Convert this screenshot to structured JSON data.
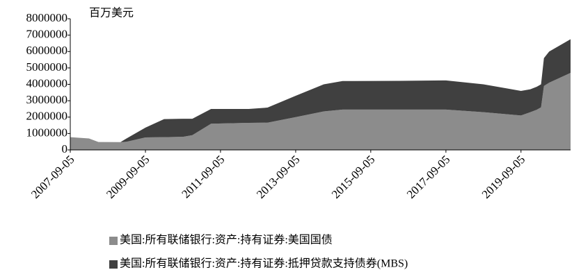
{
  "chart_data": {
    "type": "stacked_area",
    "y_label": "百万美元",
    "x": [
      "2007-09-05",
      "2008-03-05",
      "2008-06-05",
      "2009-01-05",
      "2009-03-05",
      "2009-09-05",
      "2010-03-05",
      "2010-09-05",
      "2010-12-05",
      "2011-06-05",
      "2012-06-05",
      "2012-12-05",
      "2013-09-05",
      "2014-06-05",
      "2014-12-05",
      "2016-06-05",
      "2017-09-05",
      "2018-09-05",
      "2019-09-05",
      "2019-12-05",
      "2020-02-05",
      "2020-03-18",
      "2020-04-15",
      "2020-06-05",
      "2020-12-30"
    ],
    "series": [
      {
        "name": "美国:所有联储银行:资产:持有证券:美国国债",
        "color": "#8c8c8c",
        "values": [
          780000,
          700000,
          480000,
          475000,
          500000,
          760000,
          780000,
          800000,
          900000,
          1600000,
          1650000,
          1660000,
          2000000,
          2350000,
          2460000,
          2460000,
          2460000,
          2300000,
          2100000,
          2300000,
          2450000,
          2600000,
          3900000,
          4100000,
          4700000
        ]
      },
      {
        "name": "美国:所有联储银行:资产:持有证券:抵押贷款支持债券(MBS)",
        "color": "#404040",
        "values": [
          0,
          0,
          0,
          0,
          200000,
          600000,
          1100000,
          1100000,
          1000000,
          900000,
          850000,
          920000,
          1300000,
          1650000,
          1740000,
          1750000,
          1780000,
          1700000,
          1500000,
          1400000,
          1400000,
          1400000,
          1700000,
          1900000,
          2050000
        ]
      }
    ],
    "xlim": [
      "2007-09-05",
      "2020-12-30"
    ],
    "xticks": [
      "2007-09-05",
      "2009-09-05",
      "2011-09-05",
      "2013-09-05",
      "2015-09-05",
      "2017-09-05",
      "2019-09-05"
    ],
    "ylim": [
      0,
      8000000
    ],
    "yticks": [
      0,
      1000000,
      2000000,
      3000000,
      4000000,
      5000000,
      6000000,
      7000000,
      8000000
    ]
  }
}
